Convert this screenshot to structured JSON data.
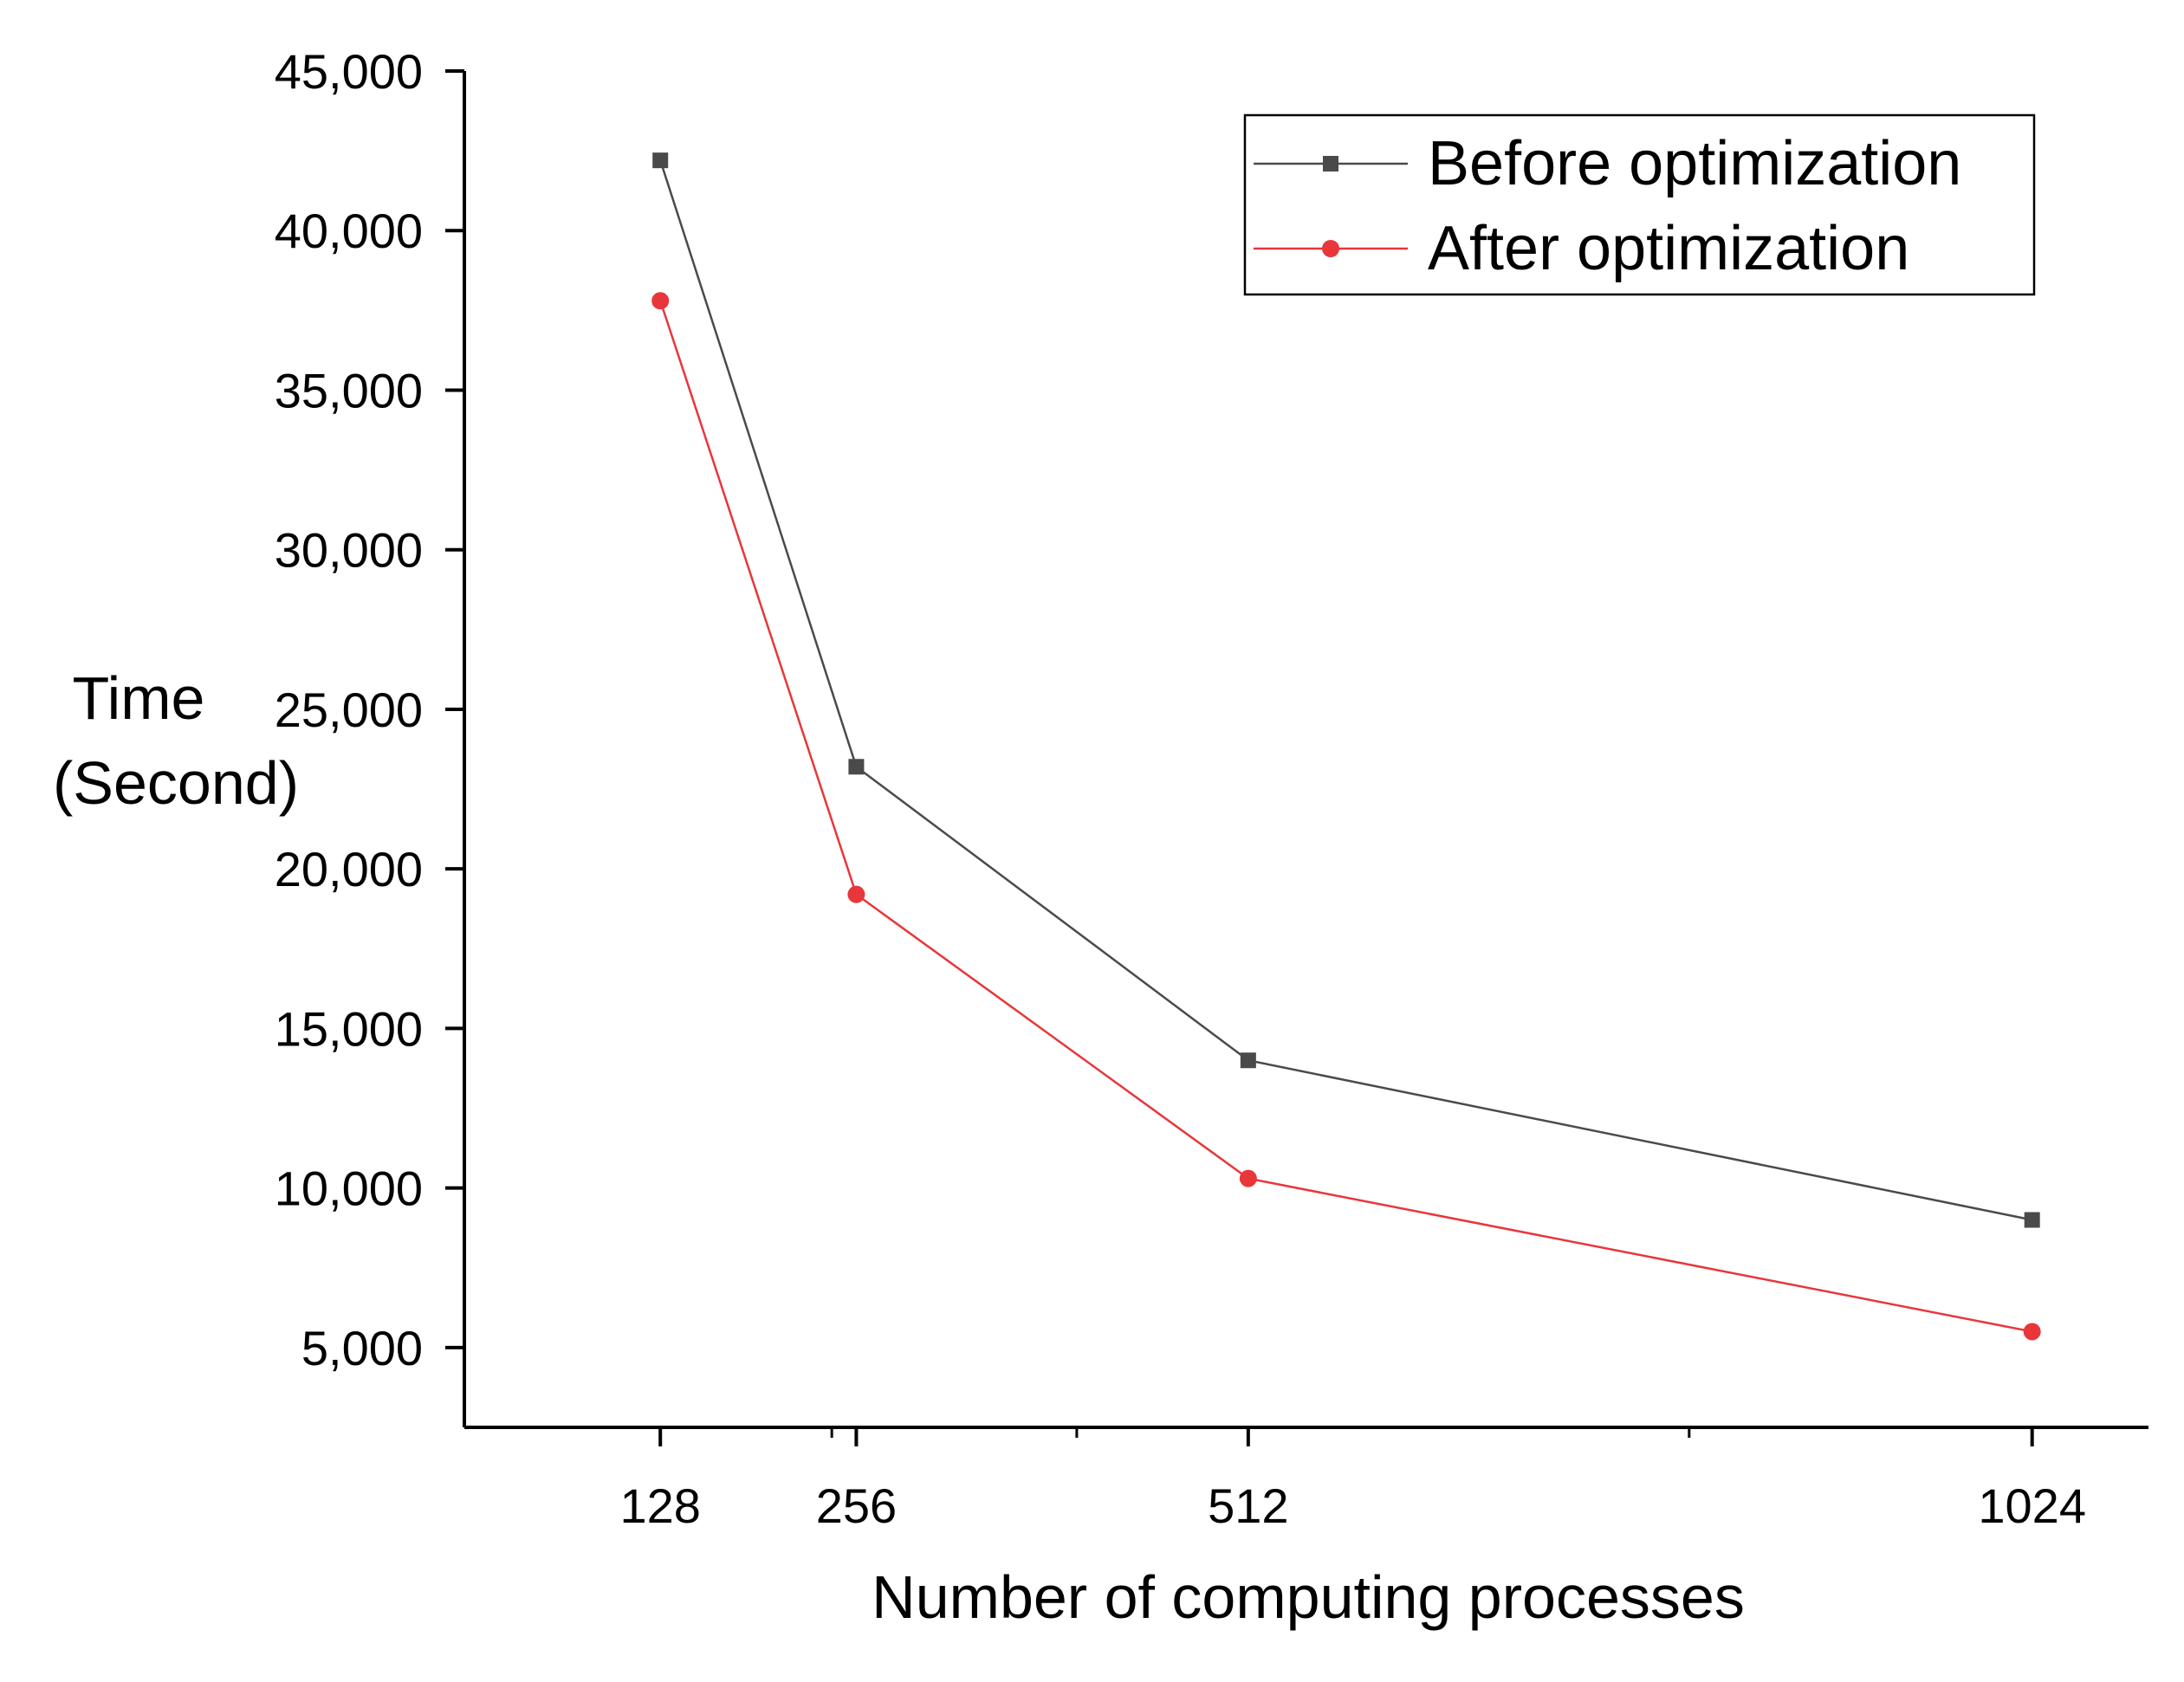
{
  "chart_data": {
    "type": "line",
    "title": "",
    "xlabel": "Number of computing processes",
    "ylabel_lines": [
      "Time",
      "(Second)"
    ],
    "x": [
      128,
      256,
      512,
      1024
    ],
    "x_tick_labels": [
      "128",
      "256",
      "512",
      "1024"
    ],
    "xlim": [
      0,
      1100
    ],
    "y_ticks": [
      5000,
      10000,
      15000,
      20000,
      25000,
      30000,
      35000,
      40000,
      45000
    ],
    "y_tick_labels": [
      "5,000",
      "10,000",
      "15,000",
      "20,000",
      "25,000",
      "30,000",
      "35,000",
      "40,000",
      "45,000"
    ],
    "ylim": [
      2500,
      45000
    ],
    "grid": false,
    "legend_position": "top-right",
    "series": [
      {
        "name": "Before optimization",
        "marker": "square",
        "color": "#4a4a4a",
        "values": [
          42200,
          23200,
          14000,
          9000
        ]
      },
      {
        "name": "After optimization",
        "marker": "circle",
        "color": "#e8363a",
        "values": [
          37800,
          19200,
          10300,
          5500
        ]
      }
    ]
  }
}
